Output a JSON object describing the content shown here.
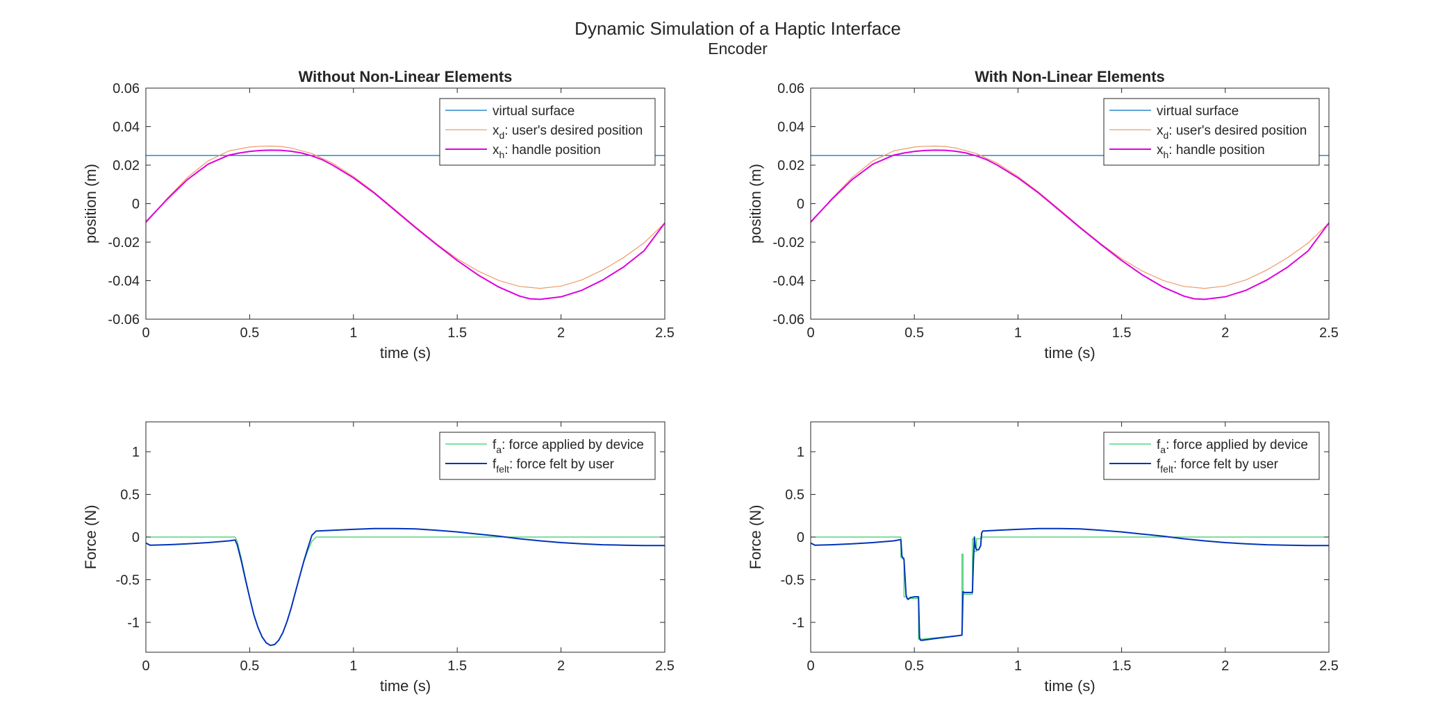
{
  "figure": {
    "title": "Dynamic Simulation of a Haptic Interface",
    "subtitle": "Encoder"
  },
  "colors": {
    "virtual_surface": "#0072BD",
    "x_d": "#EE9A6A",
    "x_h": "#DD00DD",
    "f_a": "#33CC66",
    "f_felt": "#0033BB",
    "axis": "#262626"
  },
  "chart_data": [
    {
      "id": "pos_linear",
      "type": "line",
      "title": "Without Non-Linear Elements",
      "xlabel": "time (s)",
      "ylabel": "position (m)",
      "xlim": [
        0,
        2.5
      ],
      "ylim": [
        -0.06,
        0.06
      ],
      "xticks": [
        0,
        0.5,
        1,
        1.5,
        2,
        2.5
      ],
      "xtick_labels": [
        "0",
        "0.5",
        "1",
        "1.5",
        "2",
        "2.5"
      ],
      "yticks": [
        -0.06,
        -0.04,
        -0.02,
        0,
        0.02,
        0.04,
        0.06
      ],
      "ytick_labels": [
        "-0.06",
        "-0.04",
        "-0.02",
        "0",
        "0.02",
        "0.04",
        "0.06"
      ],
      "legend_position": "top-right",
      "series": [
        {
          "name": "virtual surface",
          "color_key": "virtual_surface",
          "width": 1.2,
          "x": [
            0,
            2.5
          ],
          "y": [
            0.025,
            0.025
          ]
        },
        {
          "name": "x_d: user's desired position",
          "color_key": "x_d",
          "width": 1.2,
          "x": [
            0,
            0.1,
            0.2,
            0.3,
            0.4,
            0.5,
            0.55,
            0.6,
            0.65,
            0.7,
            0.8,
            0.9,
            1.0,
            1.1,
            1.2,
            1.3,
            1.4,
            1.5,
            1.6,
            1.7,
            1.8,
            1.9,
            2.0,
            2.1,
            2.2,
            2.3,
            2.4,
            2.5
          ],
          "y": [
            -0.01,
            0.0024,
            0.0136,
            0.0222,
            0.0274,
            0.0294,
            0.0298,
            0.0299,
            0.0297,
            0.0289,
            0.026,
            0.021,
            0.0141,
            0.006,
            -0.003,
            -0.0121,
            -0.0208,
            -0.0286,
            -0.035,
            -0.0399,
            -0.043,
            -0.044,
            -0.0428,
            -0.0396,
            -0.0345,
            -0.0281,
            -0.0204,
            -0.01
          ]
        },
        {
          "name": "x_h: handle position",
          "color_key": "x_h",
          "width": 2,
          "x": [
            0,
            0.1,
            0.2,
            0.3,
            0.4,
            0.45,
            0.5,
            0.55,
            0.6,
            0.65,
            0.7,
            0.75,
            0.8,
            0.85,
            0.9,
            1.0,
            1.1,
            1.2,
            1.3,
            1.4,
            1.5,
            1.6,
            1.7,
            1.8,
            1.85,
            1.9,
            2.0,
            2.1,
            2.2,
            2.3,
            2.4,
            2.5
          ],
          "y": [
            -0.0095,
            0.002,
            0.0125,
            0.0205,
            0.0252,
            0.0263,
            0.0271,
            0.0276,
            0.0278,
            0.0277,
            0.0272,
            0.0263,
            0.0248,
            0.0228,
            0.02,
            0.0134,
            0.0055,
            -0.0035,
            -0.0125,
            -0.0212,
            -0.0295,
            -0.037,
            -0.0433,
            -0.048,
            -0.0494,
            -0.0497,
            -0.0484,
            -0.045,
            -0.0397,
            -0.033,
            -0.0245,
            -0.01
          ]
        }
      ]
    },
    {
      "id": "pos_nonlinear",
      "type": "line",
      "title": "With Non-Linear Elements",
      "xlabel": "time (s)",
      "ylabel": "position (m)",
      "xlim": [
        0,
        2.5
      ],
      "ylim": [
        -0.06,
        0.06
      ],
      "xticks": [
        0,
        0.5,
        1,
        1.5,
        2,
        2.5
      ],
      "xtick_labels": [
        "0",
        "0.5",
        "1",
        "1.5",
        "2",
        "2.5"
      ],
      "yticks": [
        -0.06,
        -0.04,
        -0.02,
        0,
        0.02,
        0.04,
        0.06
      ],
      "ytick_labels": [
        "-0.06",
        "-0.04",
        "-0.02",
        "0",
        "0.02",
        "0.04",
        "0.06"
      ],
      "legend_position": "top-right",
      "series": [
        {
          "name": "virtual surface",
          "color_key": "virtual_surface",
          "width": 1.2,
          "x": [
            0,
            2.5
          ],
          "y": [
            0.025,
            0.025
          ]
        },
        {
          "name": "x_d: user's desired position",
          "color_key": "x_d",
          "width": 1.2,
          "x": [
            0,
            0.1,
            0.2,
            0.3,
            0.4,
            0.5,
            0.55,
            0.6,
            0.65,
            0.7,
            0.8,
            0.9,
            1.0,
            1.1,
            1.2,
            1.3,
            1.4,
            1.5,
            1.6,
            1.7,
            1.8,
            1.9,
            2.0,
            2.1,
            2.2,
            2.3,
            2.4,
            2.5
          ],
          "y": [
            -0.01,
            0.0024,
            0.0136,
            0.0222,
            0.0274,
            0.0294,
            0.0298,
            0.0299,
            0.0297,
            0.0289,
            0.026,
            0.021,
            0.0141,
            0.006,
            -0.003,
            -0.0121,
            -0.0208,
            -0.0286,
            -0.035,
            -0.0399,
            -0.043,
            -0.044,
            -0.0428,
            -0.0396,
            -0.0345,
            -0.0281,
            -0.0204,
            -0.01
          ]
        },
        {
          "name": "x_h: handle position",
          "color_key": "x_h",
          "width": 2,
          "x": [
            0,
            0.1,
            0.2,
            0.3,
            0.4,
            0.45,
            0.5,
            0.55,
            0.6,
            0.65,
            0.7,
            0.75,
            0.8,
            0.85,
            0.9,
            1.0,
            1.1,
            1.2,
            1.3,
            1.4,
            1.5,
            1.6,
            1.7,
            1.8,
            1.85,
            1.9,
            2.0,
            2.1,
            2.2,
            2.3,
            2.4,
            2.5
          ],
          "y": [
            -0.0095,
            0.002,
            0.0125,
            0.0205,
            0.0252,
            0.0263,
            0.0271,
            0.0276,
            0.0278,
            0.0277,
            0.0272,
            0.0263,
            0.0248,
            0.0228,
            0.02,
            0.0134,
            0.0055,
            -0.0035,
            -0.0125,
            -0.0212,
            -0.0295,
            -0.037,
            -0.0433,
            -0.048,
            -0.0494,
            -0.0497,
            -0.0484,
            -0.045,
            -0.0397,
            -0.033,
            -0.0245,
            -0.01
          ]
        }
      ]
    },
    {
      "id": "force_linear",
      "type": "line",
      "title": "",
      "xlabel": "time (s)",
      "ylabel": "Force (N)",
      "xlim": [
        0,
        2.5
      ],
      "ylim": [
        -1.35,
        1.35
      ],
      "xticks": [
        0,
        0.5,
        1,
        1.5,
        2,
        2.5
      ],
      "xtick_labels": [
        "0",
        "0.5",
        "1",
        "1.5",
        "2",
        "2.5"
      ],
      "yticks": [
        -1,
        -0.5,
        0,
        0.5,
        1
      ],
      "ytick_labels": [
        "-1",
        "-0.5",
        "0",
        "0.5",
        "1"
      ],
      "legend_position": "top-right",
      "series": [
        {
          "name": "f_a: force applied by device",
          "color_key": "f_a",
          "width": 1.2,
          "x": [
            0,
            0.43,
            0.44,
            0.46,
            0.48,
            0.5,
            0.52,
            0.54,
            0.56,
            0.58,
            0.6,
            0.62,
            0.64,
            0.66,
            0.68,
            0.7,
            0.72,
            0.74,
            0.76,
            0.78,
            0.8,
            0.82,
            0.83,
            2.5
          ],
          "y": [
            0,
            0,
            -0.05,
            -0.25,
            -0.48,
            -0.7,
            -0.9,
            -1.06,
            -1.17,
            -1.24,
            -1.27,
            -1.26,
            -1.21,
            -1.12,
            -0.99,
            -0.83,
            -0.65,
            -0.48,
            -0.3,
            -0.16,
            -0.05,
            0,
            0,
            0
          ]
        },
        {
          "name": "f_felt: force felt by user",
          "color_key": "f_felt",
          "width": 2,
          "x": [
            0,
            0.02,
            0.1,
            0.2,
            0.3,
            0.4,
            0.43,
            0.44,
            0.46,
            0.48,
            0.5,
            0.52,
            0.54,
            0.56,
            0.58,
            0.6,
            0.62,
            0.64,
            0.66,
            0.68,
            0.7,
            0.72,
            0.74,
            0.76,
            0.78,
            0.8,
            0.82,
            0.9,
            1.0,
            1.1,
            1.2,
            1.3,
            1.4,
            1.5,
            1.6,
            1.7,
            1.8,
            1.9,
            2.0,
            2.1,
            2.2,
            2.3,
            2.4,
            2.5
          ],
          "y": [
            -0.07,
            -0.095,
            -0.09,
            -0.08,
            -0.065,
            -0.045,
            -0.035,
            -0.09,
            -0.28,
            -0.5,
            -0.71,
            -0.91,
            -1.06,
            -1.17,
            -1.24,
            -1.27,
            -1.26,
            -1.21,
            -1.12,
            -0.99,
            -0.83,
            -0.65,
            -0.47,
            -0.29,
            -0.13,
            0.02,
            0.07,
            0.08,
            0.09,
            0.1,
            0.1,
            0.095,
            0.08,
            0.06,
            0.035,
            0.01,
            -0.02,
            -0.045,
            -0.065,
            -0.08,
            -0.09,
            -0.095,
            -0.1,
            -0.1
          ]
        }
      ]
    },
    {
      "id": "force_nonlinear",
      "type": "line",
      "title": "",
      "xlabel": "time (s)",
      "ylabel": "Force (N)",
      "xlim": [
        0,
        2.5
      ],
      "ylim": [
        -1.35,
        1.35
      ],
      "xticks": [
        0,
        0.5,
        1,
        1.5,
        2,
        2.5
      ],
      "xtick_labels": [
        "0",
        "0.5",
        "1",
        "1.5",
        "2",
        "2.5"
      ],
      "yticks": [
        -1,
        -0.5,
        0,
        0.5,
        1
      ],
      "ytick_labels": [
        "-1",
        "-0.5",
        "0",
        "0.5",
        "1"
      ],
      "legend_position": "top-right",
      "series": [
        {
          "name": "f_a: force applied by device",
          "color_key": "f_a",
          "width": 1.2,
          "x": [
            0,
            0.435,
            0.435,
            0.45,
            0.45,
            0.465,
            0.465,
            0.52,
            0.52,
            0.73,
            0.73,
            0.735,
            0.735,
            0.78,
            0.78,
            0.79,
            0.79,
            0.8,
            0.8,
            0.82,
            0.82,
            2.5
          ],
          "y": [
            0,
            0,
            -0.24,
            -0.24,
            -0.7,
            -0.7,
            -0.72,
            -0.72,
            -1.2,
            -1.15,
            -0.2,
            -0.2,
            -0.67,
            -0.67,
            -0.02,
            -0.02,
            -0.17,
            -0.17,
            -0.02,
            -0.02,
            0,
            0
          ]
        },
        {
          "name": "f_felt: force felt by user",
          "color_key": "f_felt",
          "width": 2,
          "x": [
            0,
            0.02,
            0.1,
            0.2,
            0.3,
            0.4,
            0.435,
            0.44,
            0.445,
            0.45,
            0.46,
            0.465,
            0.47,
            0.48,
            0.5,
            0.52,
            0.525,
            0.53,
            0.54,
            0.6,
            0.7,
            0.73,
            0.735,
            0.74,
            0.78,
            0.785,
            0.79,
            0.795,
            0.8,
            0.81,
            0.82,
            0.825,
            0.83,
            0.9,
            1.0,
            1.1,
            1.2,
            1.3,
            1.4,
            1.5,
            1.6,
            1.7,
            1.8,
            1.9,
            2.0,
            2.1,
            2.2,
            2.3,
            2.4,
            2.5
          ],
          "y": [
            -0.07,
            -0.095,
            -0.09,
            -0.08,
            -0.065,
            -0.045,
            -0.03,
            -0.22,
            -0.25,
            -0.26,
            -0.68,
            -0.72,
            -0.73,
            -0.71,
            -0.7,
            -0.7,
            -1.18,
            -1.21,
            -1.21,
            -1.19,
            -1.16,
            -1.15,
            -0.64,
            -0.65,
            -0.65,
            -0.3,
            0.0,
            -0.12,
            -0.15,
            -0.15,
            -0.1,
            0.05,
            0.07,
            0.08,
            0.09,
            0.1,
            0.1,
            0.095,
            0.08,
            0.06,
            0.035,
            0.01,
            -0.02,
            -0.045,
            -0.065,
            -0.08,
            -0.09,
            -0.095,
            -0.1,
            -0.1
          ]
        }
      ]
    }
  ],
  "legends": {
    "position": [
      {
        "main": "virtual surface",
        "sub": "",
        "rest": ""
      },
      {
        "main": "x",
        "sub": "d",
        "rest": ": user's desired position"
      },
      {
        "main": "x",
        "sub": "h",
        "rest": ": handle position"
      }
    ],
    "force": [
      {
        "main": "f",
        "sub": "a",
        "rest": ": force applied by device"
      },
      {
        "main": "f",
        "sub": "felt",
        "rest": ": force felt by user"
      }
    ]
  }
}
